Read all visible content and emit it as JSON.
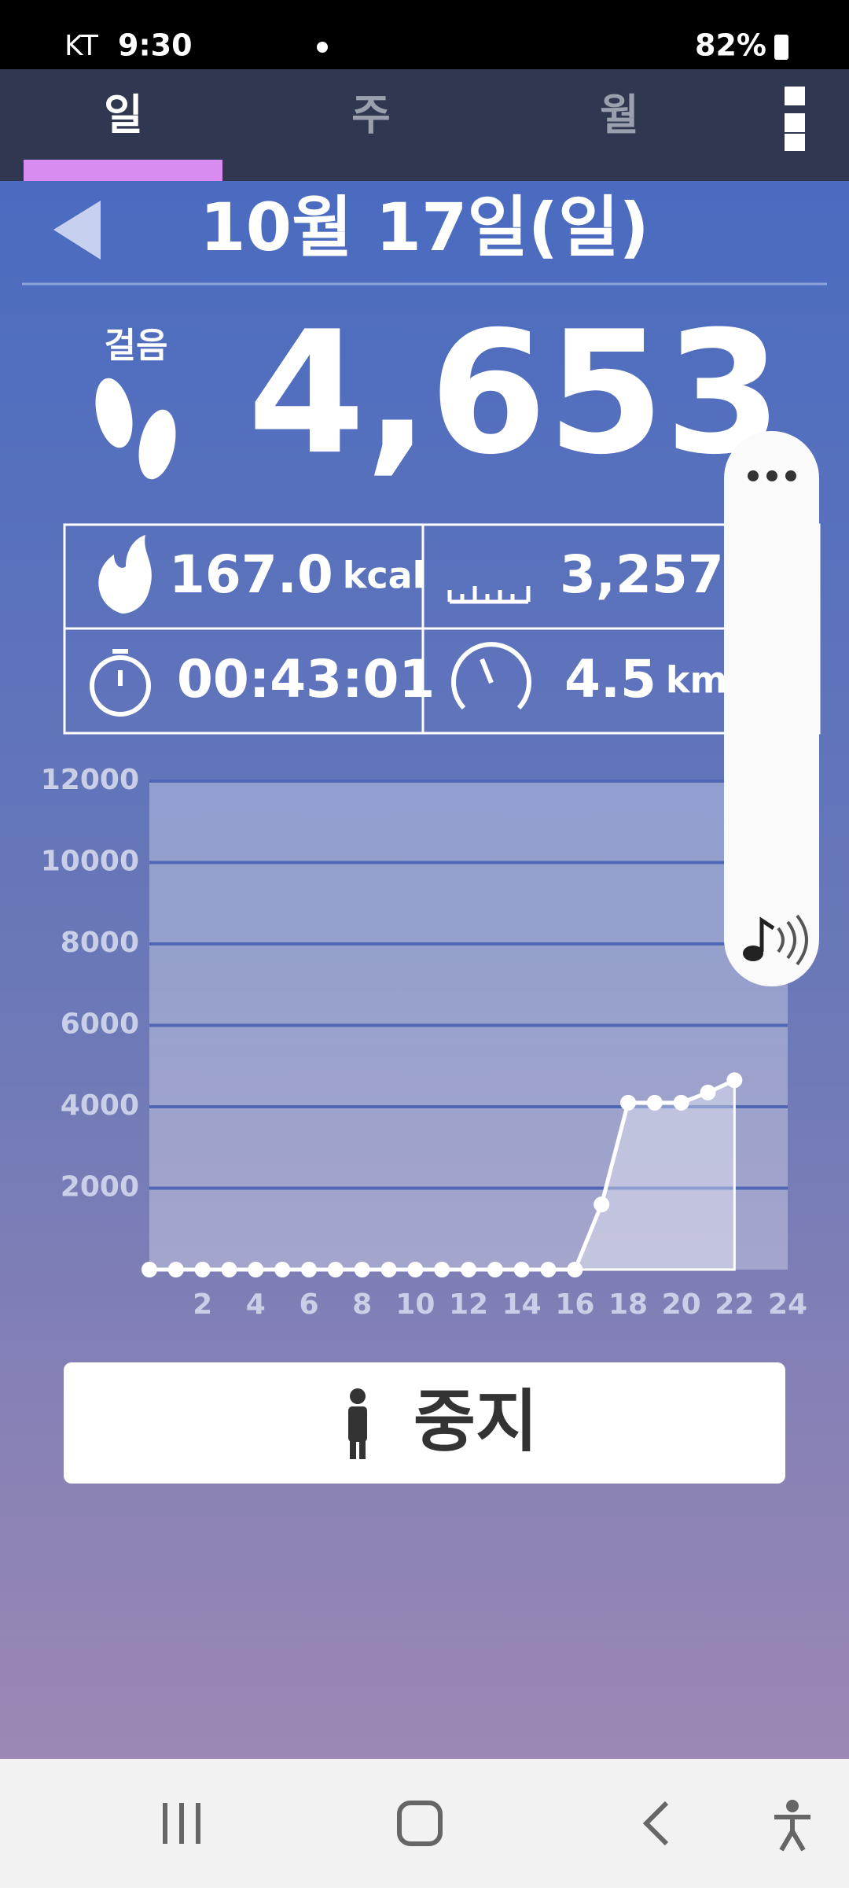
{
  "status_bar": {
    "carrier": "KT",
    "time": "9:30",
    "battery": "82%"
  },
  "tabs": [
    "일",
    "주",
    "월"
  ],
  "date": "10월 17일(일)",
  "steps": {
    "label": "걸음",
    "value": "4,653"
  },
  "stats": [
    {
      "value": "167.0",
      "unit": "kcal"
    },
    {
      "value": "3,257"
    },
    {
      "value": "00:43:01"
    },
    {
      "value": "4.5",
      "unit": "km/h"
    }
  ],
  "chart_data": {
    "type": "line",
    "x": [
      0,
      1,
      2,
      3,
      4,
      5,
      6,
      7,
      8,
      9,
      10,
      11,
      12,
      13,
      14,
      15,
      16,
      17,
      18,
      19,
      20,
      21,
      22
    ],
    "values": [
      0,
      0,
      0,
      0,
      0,
      0,
      0,
      0,
      0,
      0,
      0,
      0,
      0,
      0,
      0,
      0,
      0,
      1600,
      4100,
      4100,
      4100,
      4350,
      4653
    ],
    "xlim": [
      0,
      24
    ],
    "xticks": [
      2,
      4,
      6,
      8,
      10,
      12,
      14,
      16,
      18,
      20,
      22,
      24
    ],
    "ylim": [
      0,
      12000
    ],
    "yticks": [
      2000,
      4000,
      6000,
      8000,
      10000,
      12000
    ],
    "color": "#ffffff",
    "grid": true
  },
  "button": "중지"
}
